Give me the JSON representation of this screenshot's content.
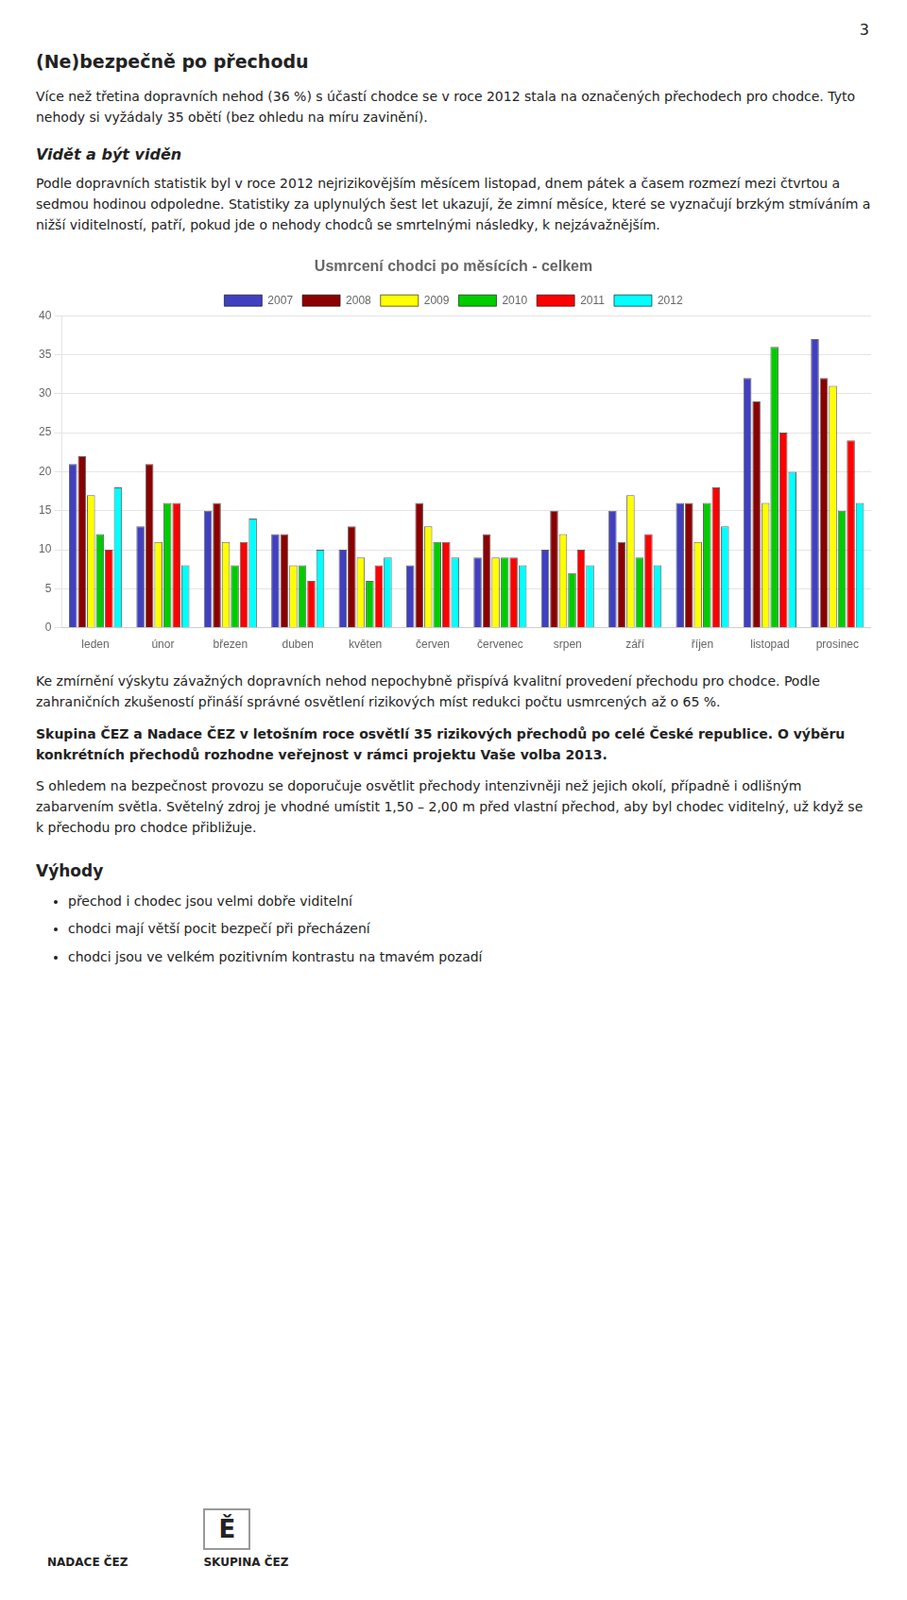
{
  "chart_data": {
    "type": "bar",
    "title": "Usmrcení chodci po měsících - celkem",
    "annotations": [
      "3",
      "(Ne)bezpečně po přechodu",
      "Více než třetina dopravních nehod (36 %) s účastí chodce se v roce 2012 stala na označených přechodech pro chodce. Tyto nehody si vyžádaly 35 obětí (bez ohledu na míru zavinění).",
      "Vidět a být viděn",
      "Podle dopravních statistik byl v roce 2012 nejrizikovějším měsícem listopad, dnem pátek a časem rozmezí mezi čtvrtou a sedmou hodinou odpoledne. Statistiky za uplynulých šest let ukazují, že zimní měsíce, které se vyznačují brzkým stmíváním a nižší viditelností, patří, pokud jde o nehody chodců se smrtelnými následky, k nejzávažnějším.",
      "Ke zmírnění výskytu závažných dopravních nehod nepochybně přispívá kvalitní provedení přechodu pro chodce. Podle zahraničních zkušeností přináší správné osvětlení rizikových míst redukci počtu usmrcených až o 65 %.",
      "Skupina ČEZ a Nadace ČEZ v letošním roce osvětlí 35 rizikových přechodů po celé České republice. O výběru konkrétních přechodů rozhodne veřejnost v rámci projektu Vaše volba 2013.",
      "S ohledem na bezpečnost provozu se doporučuje osvětlit přechody intenzivněji než jejich okolí, případně i odlišným zabarvením světla. Světelný zdroj je vhodné umístit 1,50 – 2,00 m před vlastní přechod, aby byl chodec viditelný, už když se k přechodu pro chodce přibližuje.",
      "Výhody",
      "přechod i chodec jsou velmi dobře viditelní",
      "chodci mají větší pocit bezpečí při přecházení",
      "chodci jsou ve velkém pozitivním kontrastu na tmavém pozadí",
      "NADACE ČEZ",
      "Ě",
      "SKUPINA ČEZ"
    ],
    "categories": [
      "leden",
      "únor",
      "březen",
      "duben",
      "květen",
      "červen",
      "červenec",
      "srpen",
      "září",
      "říjen",
      "listopad",
      "prosinec"
    ],
    "series": [
      {
        "name": "2007",
        "color": "#4040C0",
        "values": [
          21,
          13,
          15,
          12,
          10,
          8,
          9,
          10,
          15,
          16,
          32,
          37
        ]
      },
      {
        "name": "2008",
        "color": "#8B0000",
        "values": [
          22,
          21,
          16,
          12,
          13,
          16,
          12,
          15,
          11,
          16,
          29,
          32
        ]
      },
      {
        "name": "2009",
        "color": "#FFFF00",
        "values": [
          17,
          11,
          11,
          8,
          9,
          13,
          9,
          12,
          17,
          11,
          16,
          31
        ]
      },
      {
        "name": "2010",
        "color": "#00CC00",
        "values": [
          12,
          16,
          8,
          8,
          6,
          11,
          9,
          7,
          9,
          16,
          36,
          15
        ]
      },
      {
        "name": "2011",
        "color": "#FF0000",
        "values": [
          10,
          16,
          11,
          6,
          8,
          11,
          9,
          10,
          12,
          18,
          25,
          24
        ]
      },
      {
        "name": "2012",
        "color": "#00FFFF",
        "values": [
          18,
          8,
          14,
          10,
          9,
          9,
          8,
          8,
          8,
          13,
          20,
          16
        ]
      }
    ],
    "ylim": [
      0,
      40
    ],
    "yticks": [
      0,
      5,
      10,
      15,
      20,
      25,
      30,
      35,
      40
    ],
    "grid": true,
    "legend": "top"
  }
}
